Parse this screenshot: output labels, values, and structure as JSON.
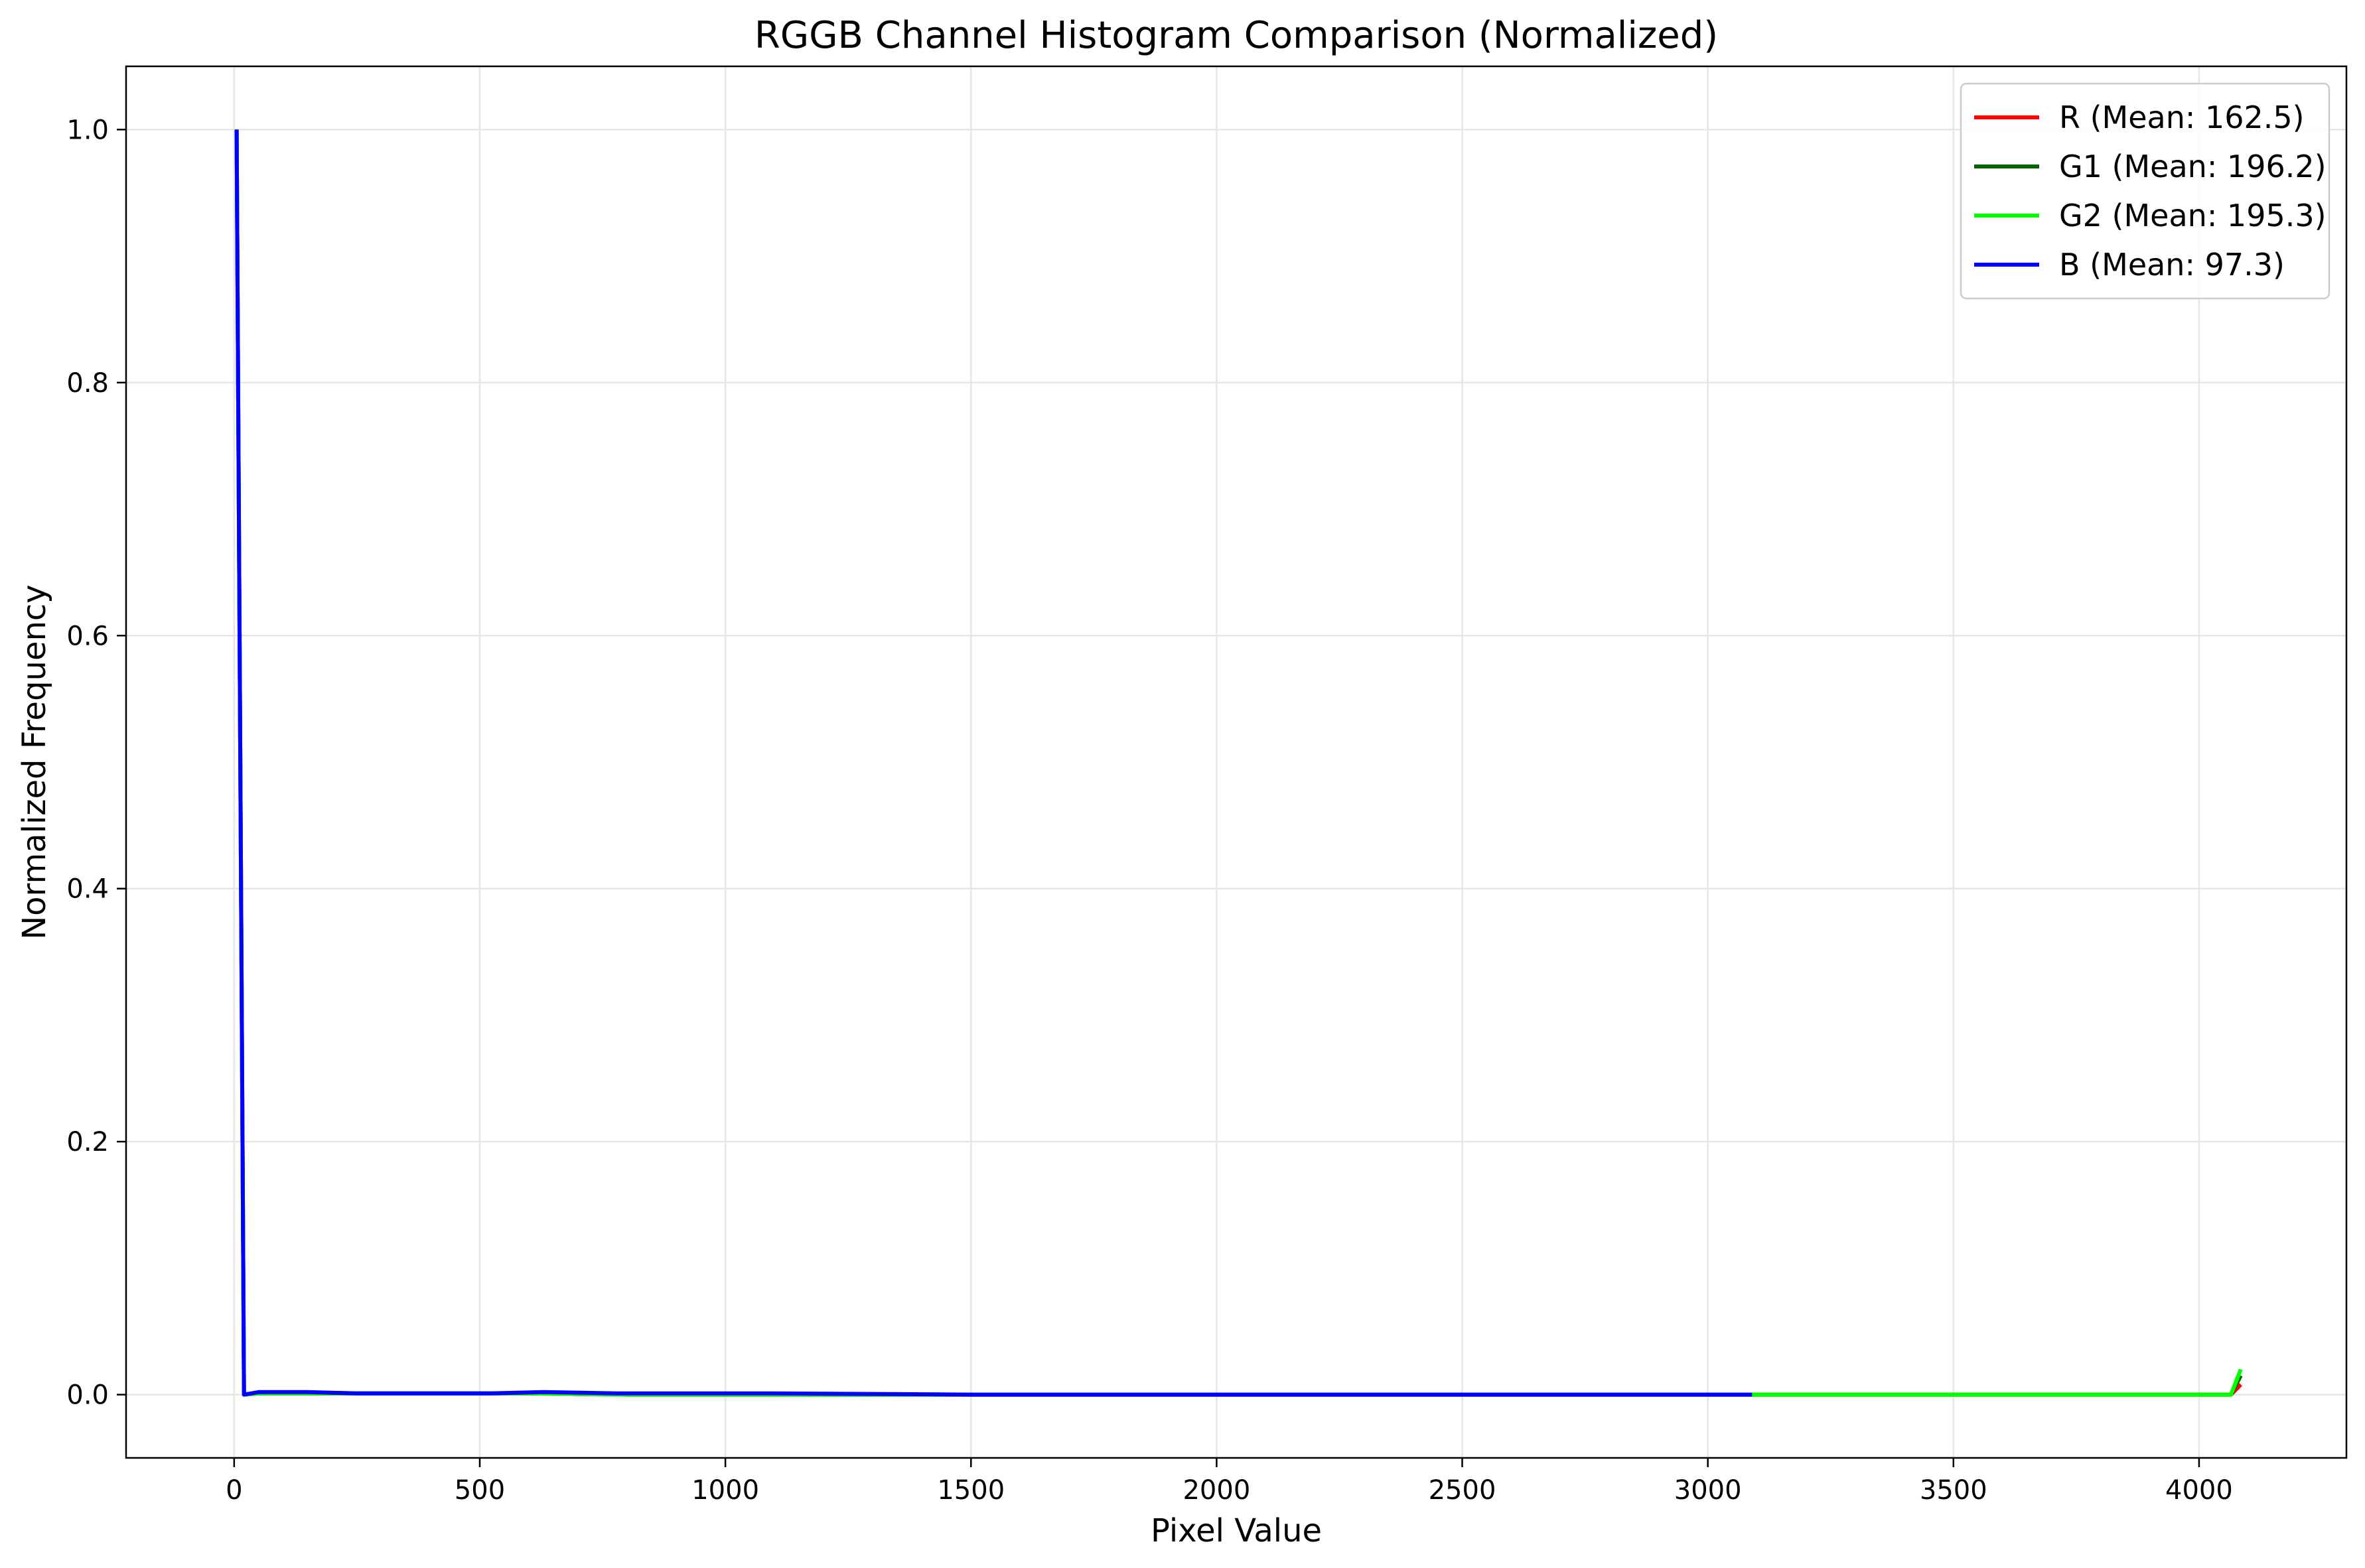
{
  "chart_data": {
    "type": "line",
    "title": "RGGB Channel Histogram Comparison (Normalized)",
    "xlabel": "Pixel Value",
    "ylabel": "Normalized Frequency",
    "xlim": [
      -220,
      4300
    ],
    "ylim": [
      -0.05,
      1.05
    ],
    "xticks": [
      0,
      500,
      1000,
      1500,
      2000,
      2500,
      3000,
      3500,
      4000
    ],
    "yticks": [
      0.0,
      0.2,
      0.4,
      0.6,
      0.8,
      1.0
    ],
    "xtick_labels": [
      "0",
      "500",
      "1000",
      "1500",
      "2000",
      "2500",
      "3000",
      "3500",
      "4000"
    ],
    "ytick_labels": [
      "0.0",
      "0.2",
      "0.4",
      "0.6",
      "0.8",
      "1.0"
    ],
    "grid": true,
    "legend_position": "top-right",
    "series": [
      {
        "name": "R (Mean: 162.5)",
        "color": "#ff0000",
        "x": [
          5,
          20,
          50,
          150,
          250,
          400,
          600,
          800,
          1000,
          1500,
          2000,
          2500,
          3000,
          3090,
          3500,
          4000,
          4065,
          4085
        ],
        "y": [
          1.0,
          0.0,
          0.001,
          0.001,
          0.001,
          0.001,
          0.001,
          0.0,
          0.0,
          0.0,
          0.0,
          0.0,
          0.0,
          0.0,
          0.0,
          0.0,
          0.0,
          0.008
        ]
      },
      {
        "name": "G1 (Mean: 196.2)",
        "color": "#006400",
        "x": [
          5,
          20,
          50,
          150,
          250,
          400,
          600,
          800,
          1000,
          1500,
          2000,
          2500,
          3000,
          3090,
          3500,
          4000,
          4065,
          4085
        ],
        "y": [
          1.0,
          0.0,
          0.001,
          0.001,
          0.001,
          0.001,
          0.001,
          0.0,
          0.0,
          0.0,
          0.0,
          0.0,
          0.0,
          0.0,
          0.0,
          0.0,
          0.0,
          0.015
        ]
      },
      {
        "name": "G2 (Mean: 195.3)",
        "color": "#00ff00",
        "x": [
          5,
          20,
          50,
          150,
          250,
          400,
          600,
          800,
          1000,
          1500,
          2000,
          2500,
          3000,
          3090,
          3500,
          4000,
          4065,
          4085
        ],
        "y": [
          1.0,
          0.0,
          0.001,
          0.001,
          0.001,
          0.001,
          0.001,
          0.0,
          0.0,
          0.0,
          0.0,
          0.0,
          0.0,
          0.0,
          0.0,
          0.0,
          0.0,
          0.02
        ]
      },
      {
        "name": "B (Mean: 97.3)",
        "color": "#0000ff",
        "x": [
          5,
          20,
          50,
          150,
          250,
          330,
          420,
          520,
          630,
          780,
          1000,
          1100,
          1500,
          2000,
          2500,
          3000,
          3090
        ],
        "y": [
          1.0,
          0.0,
          0.002,
          0.002,
          0.001,
          0.001,
          0.001,
          0.001,
          0.002,
          0.001,
          0.001,
          0.001,
          0.0,
          0.0,
          0.0,
          0.0,
          0.0
        ]
      }
    ]
  }
}
